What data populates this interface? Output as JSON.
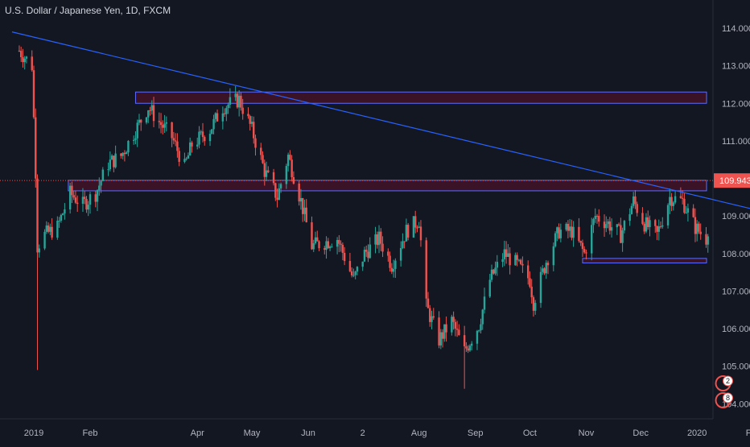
{
  "symbol_title": "U.S. Dollar / Japanese Yen, 1D, FXCM",
  "price_badge": "109.943",
  "colors": {
    "background": "#131722",
    "up": "#26a69a",
    "down": "#ef5350",
    "trendline": "#2962ff",
    "zone_fill": "#3a1426",
    "zone_border": "#5b6cff",
    "axis_text": "#b2b5be",
    "badge": "#ef5350"
  },
  "event_markers": [
    "2",
    "8"
  ],
  "chart_data": {
    "type": "candlestick",
    "title": "U.S. Dollar / Japanese Yen, 1D, FXCM",
    "y_ticks": [
      "104.000",
      "105.000",
      "106.000",
      "107.000",
      "108.000",
      "109.000",
      "110.000",
      "111.000",
      "112.000",
      "113.000",
      "114.000"
    ],
    "ylim": [
      103.6,
      114.75
    ],
    "x_ticks": [
      "2019",
      "Feb",
      "Apr",
      "May",
      "Jun",
      "2",
      "Aug",
      "Sep",
      "Oct",
      "Nov",
      "Dec",
      "2020",
      "Feb"
    ],
    "last_price": 109.943,
    "path": [
      {
        "d": "2018-12-24",
        "p": 113.4
      },
      {
        "d": "2018-12-31",
        "p": 113.0
      },
      {
        "d": "2019-01-02",
        "p": 110.2
      },
      {
        "d": "2019-01-03",
        "p": 108.2
      },
      {
        "d": "2019-01-07",
        "p": 108.5
      },
      {
        "d": "2019-01-14",
        "p": 108.7
      },
      {
        "d": "2019-01-21",
        "p": 109.6
      },
      {
        "d": "2019-01-28",
        "p": 109.3
      },
      {
        "d": "2019-02-04",
        "p": 109.6
      },
      {
        "d": "2019-02-11",
        "p": 110.4
      },
      {
        "d": "2019-02-18",
        "p": 110.6
      },
      {
        "d": "2019-02-25",
        "p": 111.2
      },
      {
        "d": "2019-03-05",
        "p": 111.9
      },
      {
        "d": "2019-03-11",
        "p": 111.5
      },
      {
        "d": "2019-03-18",
        "p": 111.1
      },
      {
        "d": "2019-03-25",
        "p": 110.3
      },
      {
        "d": "2019-03-29",
        "p": 110.9
      },
      {
        "d": "2019-04-08",
        "p": 111.3
      },
      {
        "d": "2019-04-15",
        "p": 111.9
      },
      {
        "d": "2019-04-24",
        "p": 112.1
      },
      {
        "d": "2019-05-01",
        "p": 111.3
      },
      {
        "d": "2019-05-08",
        "p": 110.2
      },
      {
        "d": "2019-05-15",
        "p": 109.5
      },
      {
        "d": "2019-05-21",
        "p": 110.6
      },
      {
        "d": "2019-05-28",
        "p": 109.4
      },
      {
        "d": "2019-06-03",
        "p": 108.2
      },
      {
        "d": "2019-06-10",
        "p": 108.3
      },
      {
        "d": "2019-06-17",
        "p": 108.4
      },
      {
        "d": "2019-06-26",
        "p": 107.3
      },
      {
        "d": "2019-07-02",
        "p": 108.0
      },
      {
        "d": "2019-07-10",
        "p": 108.4
      },
      {
        "d": "2019-07-17",
        "p": 107.7
      },
      {
        "d": "2019-07-25",
        "p": 108.6
      },
      {
        "d": "2019-08-01",
        "p": 108.9
      },
      {
        "d": "2019-08-05",
        "p": 106.6
      },
      {
        "d": "2019-08-12",
        "p": 105.7
      },
      {
        "d": "2019-08-19",
        "p": 106.2
      },
      {
        "d": "2019-08-26",
        "p": 105.4
      },
      {
        "d": "2019-09-03",
        "p": 106.1
      },
      {
        "d": "2019-09-09",
        "p": 107.3
      },
      {
        "d": "2019-09-17",
        "p": 108.0
      },
      {
        "d": "2019-09-24",
        "p": 107.7
      },
      {
        "d": "2019-10-01",
        "p": 107.3
      },
      {
        "d": "2019-10-03",
        "p": 106.7
      },
      {
        "d": "2019-10-10",
        "p": 107.8
      },
      {
        "d": "2019-10-17",
        "p": 108.6
      },
      {
        "d": "2019-10-24",
        "p": 108.6
      },
      {
        "d": "2019-10-31",
        "p": 108.0
      },
      {
        "d": "2019-11-06",
        "p": 109.0
      },
      {
        "d": "2019-11-13",
        "p": 108.8
      },
      {
        "d": "2019-11-20",
        "p": 108.5
      },
      {
        "d": "2019-11-27",
        "p": 109.4
      },
      {
        "d": "2019-12-03",
        "p": 108.8
      },
      {
        "d": "2019-12-10",
        "p": 108.5
      },
      {
        "d": "2019-12-17",
        "p": 109.5
      },
      {
        "d": "2019-12-24",
        "p": 109.4
      },
      {
        "d": "2019-12-31",
        "p": 108.7
      },
      {
        "d": "2020-01-06",
        "p": 108.4
      },
      {
        "d": "2020-01-10",
        "p": 109.5
      },
      {
        "d": "2020-01-14",
        "p": 109.94
      }
    ],
    "spikes": [
      {
        "d": "2019-01-03",
        "low": 104.9
      },
      {
        "d": "2019-08-26",
        "low": 104.4
      },
      {
        "d": "2020-01-08",
        "low": 107.6
      }
    ],
    "trendline": [
      {
        "d": "2018-12-20",
        "p": 113.9
      },
      {
        "d": "2020-02-12",
        "p": 109.2
      }
    ],
    "zones": [
      {
        "from": "2019-02-26",
        "to": "2020-02-12",
        "low": 112.0,
        "high": 112.3
      },
      {
        "from": "2019-01-20",
        "to": "2020-02-12",
        "low": 109.67,
        "high": 109.95
      },
      {
        "from": "2019-10-30",
        "to": "2020-01-27",
        "low": 107.75,
        "high": 107.87
      }
    ]
  }
}
